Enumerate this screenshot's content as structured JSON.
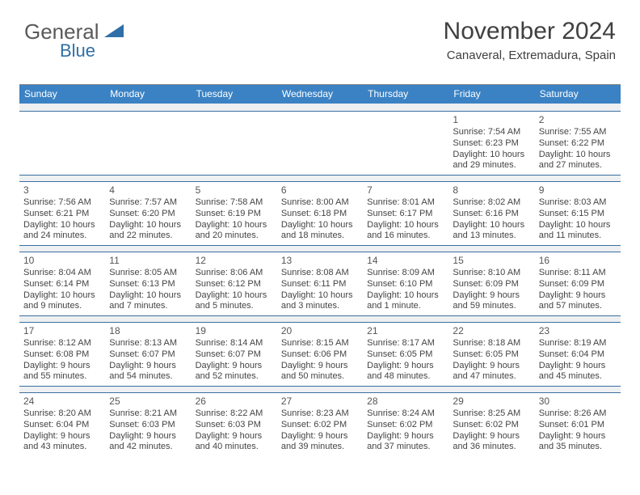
{
  "branding": {
    "logo_text_1": "General",
    "logo_text_2": "Blue",
    "logo_text_color": "#5a5a5a",
    "logo_accent_color": "#2f6fa7",
    "triangle_color": "#2f6fa7"
  },
  "header": {
    "title": "November 2024",
    "subtitle": "Canaveral, Extremadura, Spain",
    "title_fontsize": 30,
    "subtitle_fontsize": 15,
    "title_color": "#404040"
  },
  "calendar": {
    "header_bg": "#3b82c4",
    "header_text_color": "#ffffff",
    "separator_bg": "#eef0f2",
    "separator_border": "#3b6fa0",
    "body_text_color": "#444444",
    "daynum_color": "#555555",
    "body_fontsize": 11,
    "days_of_week": [
      "Sunday",
      "Monday",
      "Tuesday",
      "Wednesday",
      "Thursday",
      "Friday",
      "Saturday"
    ],
    "weeks": [
      [
        null,
        null,
        null,
        null,
        null,
        {
          "n": "1",
          "sr": "7:54 AM",
          "ss": "6:23 PM",
          "dl": "10 hours and 29 minutes."
        },
        {
          "n": "2",
          "sr": "7:55 AM",
          "ss": "6:22 PM",
          "dl": "10 hours and 27 minutes."
        }
      ],
      [
        {
          "n": "3",
          "sr": "7:56 AM",
          "ss": "6:21 PM",
          "dl": "10 hours and 24 minutes."
        },
        {
          "n": "4",
          "sr": "7:57 AM",
          "ss": "6:20 PM",
          "dl": "10 hours and 22 minutes."
        },
        {
          "n": "5",
          "sr": "7:58 AM",
          "ss": "6:19 PM",
          "dl": "10 hours and 20 minutes."
        },
        {
          "n": "6",
          "sr": "8:00 AM",
          "ss": "6:18 PM",
          "dl": "10 hours and 18 minutes."
        },
        {
          "n": "7",
          "sr": "8:01 AM",
          "ss": "6:17 PM",
          "dl": "10 hours and 16 minutes."
        },
        {
          "n": "8",
          "sr": "8:02 AM",
          "ss": "6:16 PM",
          "dl": "10 hours and 13 minutes."
        },
        {
          "n": "9",
          "sr": "8:03 AM",
          "ss": "6:15 PM",
          "dl": "10 hours and 11 minutes."
        }
      ],
      [
        {
          "n": "10",
          "sr": "8:04 AM",
          "ss": "6:14 PM",
          "dl": "10 hours and 9 minutes."
        },
        {
          "n": "11",
          "sr": "8:05 AM",
          "ss": "6:13 PM",
          "dl": "10 hours and 7 minutes."
        },
        {
          "n": "12",
          "sr": "8:06 AM",
          "ss": "6:12 PM",
          "dl": "10 hours and 5 minutes."
        },
        {
          "n": "13",
          "sr": "8:08 AM",
          "ss": "6:11 PM",
          "dl": "10 hours and 3 minutes."
        },
        {
          "n": "14",
          "sr": "8:09 AM",
          "ss": "6:10 PM",
          "dl": "10 hours and 1 minute."
        },
        {
          "n": "15",
          "sr": "8:10 AM",
          "ss": "6:09 PM",
          "dl": "9 hours and 59 minutes."
        },
        {
          "n": "16",
          "sr": "8:11 AM",
          "ss": "6:09 PM",
          "dl": "9 hours and 57 minutes."
        }
      ],
      [
        {
          "n": "17",
          "sr": "8:12 AM",
          "ss": "6:08 PM",
          "dl": "9 hours and 55 minutes."
        },
        {
          "n": "18",
          "sr": "8:13 AM",
          "ss": "6:07 PM",
          "dl": "9 hours and 54 minutes."
        },
        {
          "n": "19",
          "sr": "8:14 AM",
          "ss": "6:07 PM",
          "dl": "9 hours and 52 minutes."
        },
        {
          "n": "20",
          "sr": "8:15 AM",
          "ss": "6:06 PM",
          "dl": "9 hours and 50 minutes."
        },
        {
          "n": "21",
          "sr": "8:17 AM",
          "ss": "6:05 PM",
          "dl": "9 hours and 48 minutes."
        },
        {
          "n": "22",
          "sr": "8:18 AM",
          "ss": "6:05 PM",
          "dl": "9 hours and 47 minutes."
        },
        {
          "n": "23",
          "sr": "8:19 AM",
          "ss": "6:04 PM",
          "dl": "9 hours and 45 minutes."
        }
      ],
      [
        {
          "n": "24",
          "sr": "8:20 AM",
          "ss": "6:04 PM",
          "dl": "9 hours and 43 minutes."
        },
        {
          "n": "25",
          "sr": "8:21 AM",
          "ss": "6:03 PM",
          "dl": "9 hours and 42 minutes."
        },
        {
          "n": "26",
          "sr": "8:22 AM",
          "ss": "6:03 PM",
          "dl": "9 hours and 40 minutes."
        },
        {
          "n": "27",
          "sr": "8:23 AM",
          "ss": "6:02 PM",
          "dl": "9 hours and 39 minutes."
        },
        {
          "n": "28",
          "sr": "8:24 AM",
          "ss": "6:02 PM",
          "dl": "9 hours and 37 minutes."
        },
        {
          "n": "29",
          "sr": "8:25 AM",
          "ss": "6:02 PM",
          "dl": "9 hours and 36 minutes."
        },
        {
          "n": "30",
          "sr": "8:26 AM",
          "ss": "6:01 PM",
          "dl": "9 hours and 35 minutes."
        }
      ]
    ],
    "labels": {
      "sunrise": "Sunrise:",
      "sunset": "Sunset:",
      "daylight": "Daylight:"
    }
  }
}
